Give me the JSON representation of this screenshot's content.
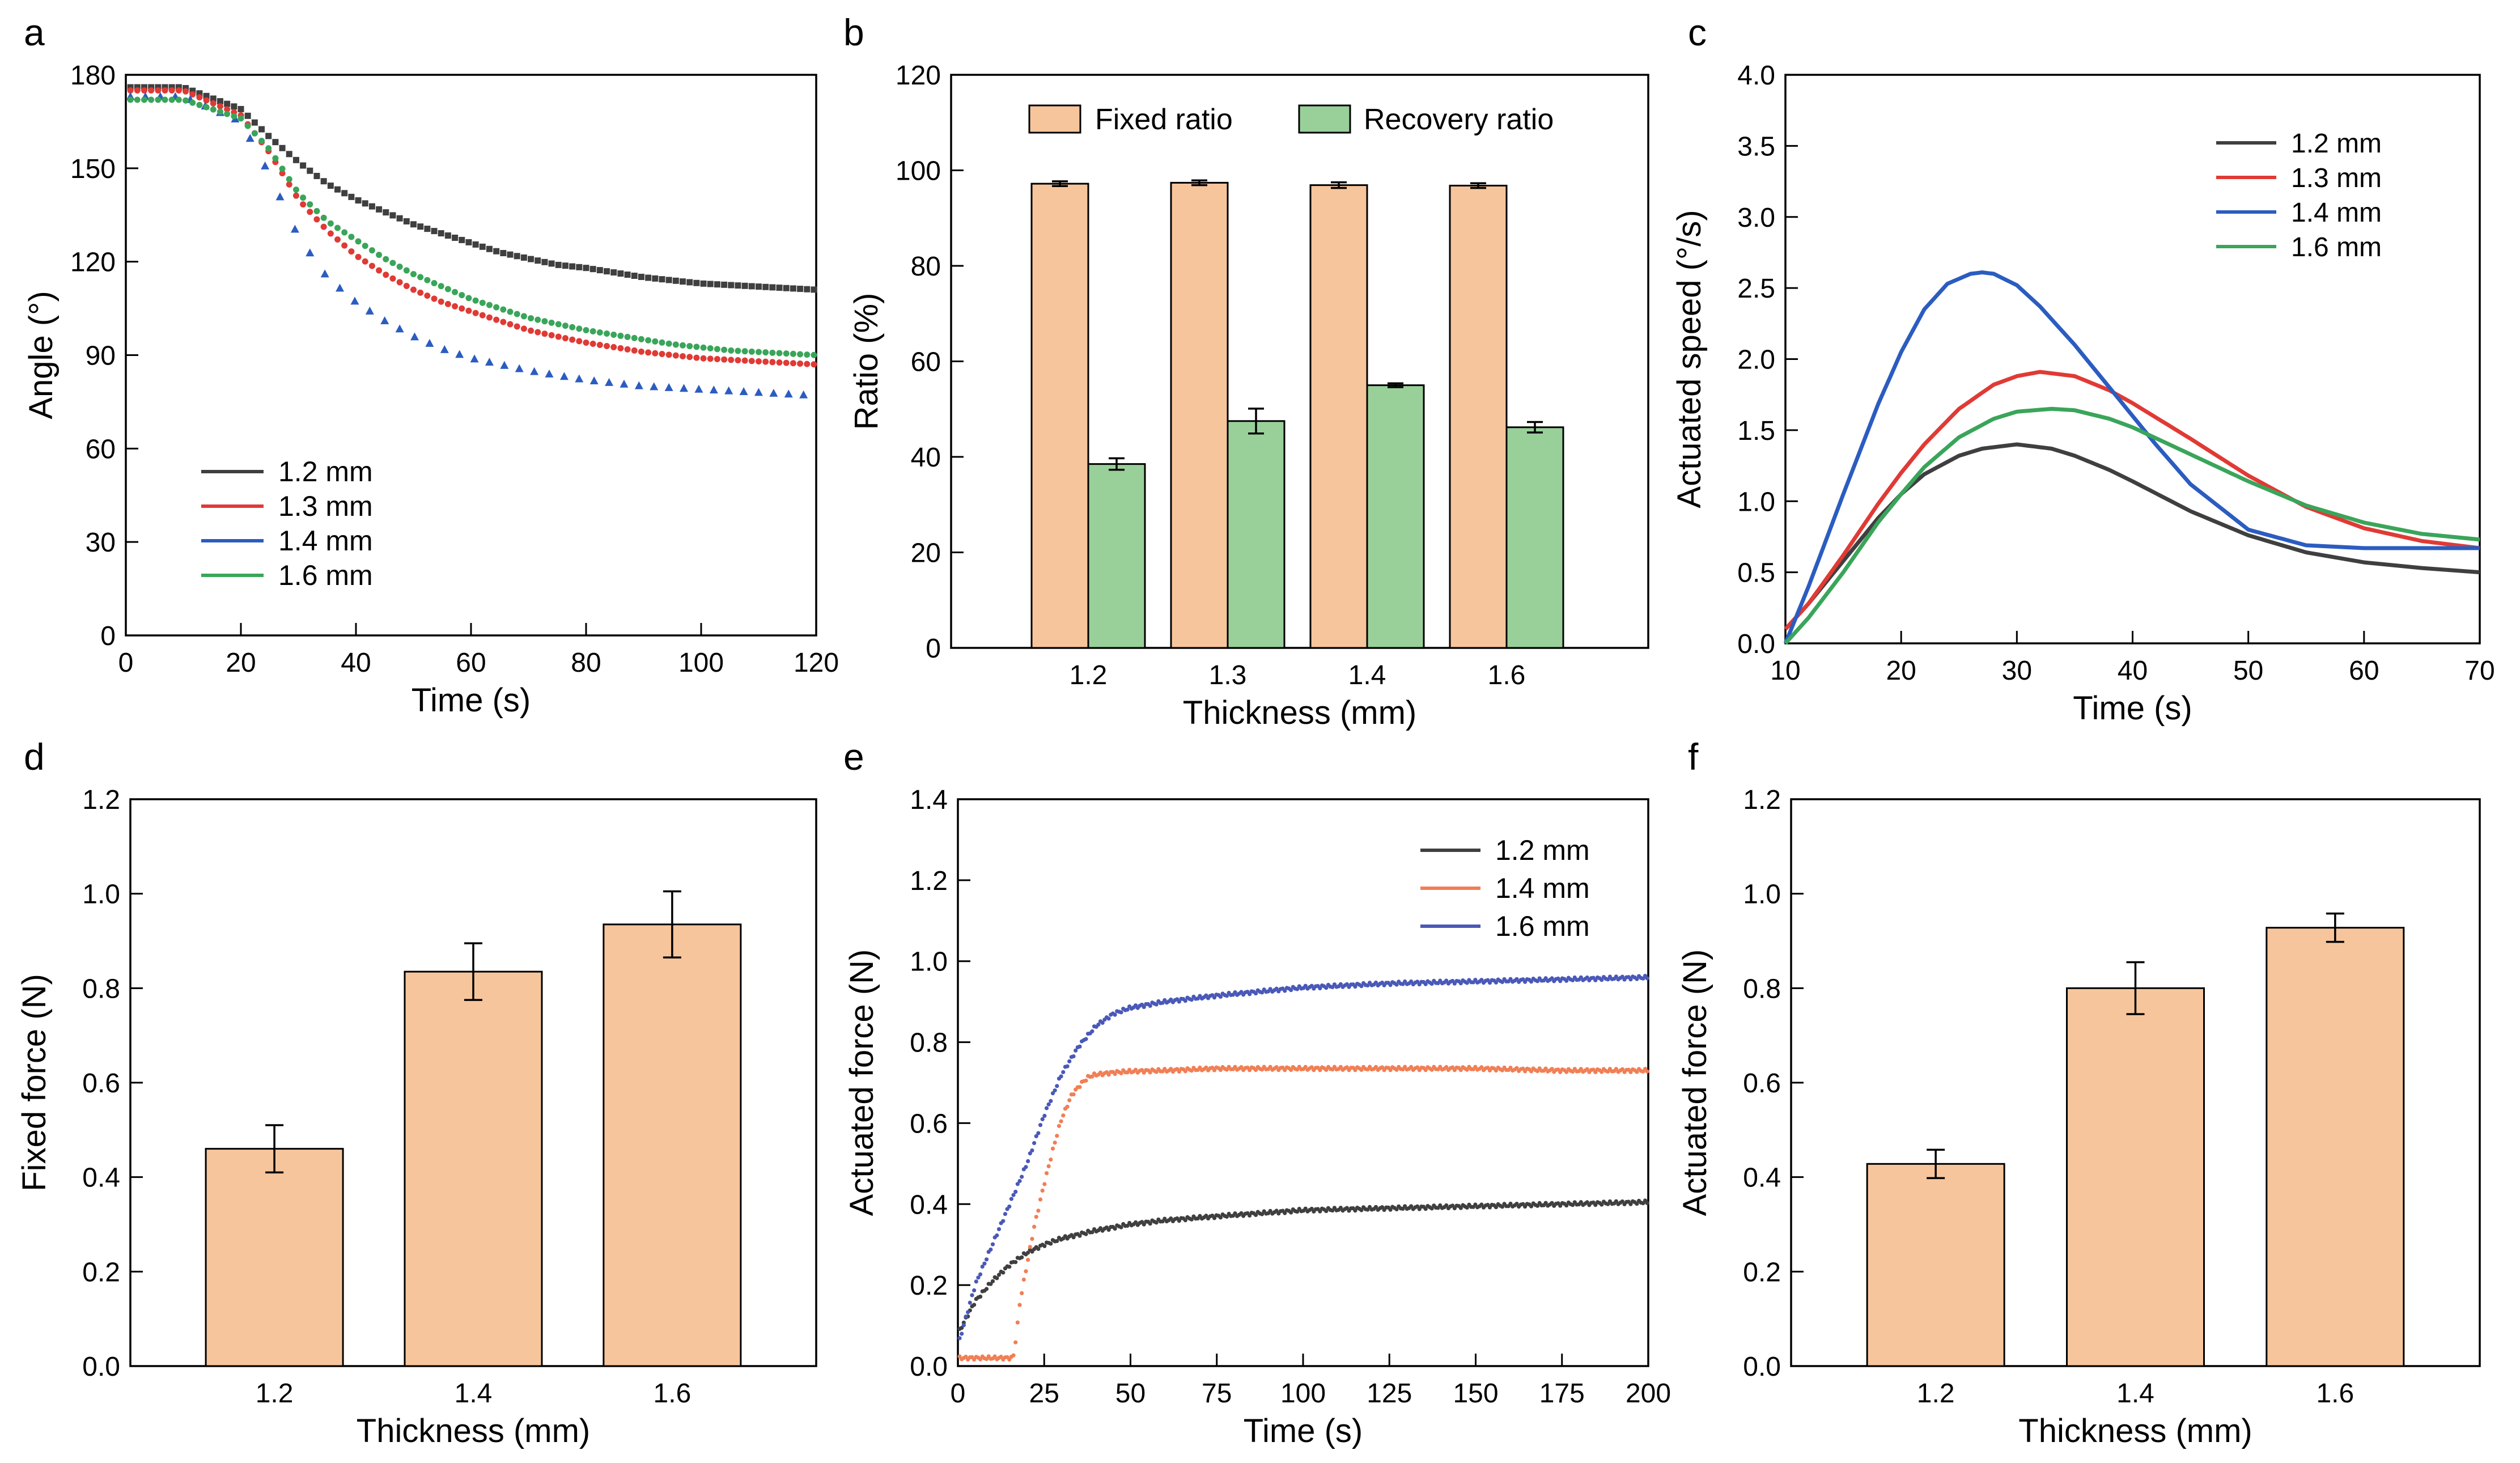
{
  "colors": {
    "bar_orange": "#F7C59C",
    "bar_green": "#99D09A",
    "c12": "#3f3f3f",
    "c13": "#e03a35",
    "c14_blue": "#2b5cc0",
    "c16_green": "#3aa55a",
    "e14_orange": "#f07f55",
    "e16_blue": "#4a58b8"
  },
  "chart_data": [
    {
      "panel": "a",
      "type": "scatter",
      "xlabel": "Time (s)",
      "ylabel": "Angle (°)",
      "xlim": [
        0,
        120
      ],
      "ylim": [
        0,
        180
      ],
      "xticks": [
        0,
        20,
        40,
        60,
        80,
        100,
        120
      ],
      "yticks": [
        0,
        30,
        60,
        90,
        120,
        150,
        180
      ],
      "legend_position": "bottom-left",
      "series": [
        {
          "name": "1.2 mm",
          "color": "#3f3f3f",
          "marker": "square",
          "step": 1.2,
          "x": [
            0,
            10,
            20,
            25,
            30,
            35,
            40,
            45,
            50,
            55,
            60,
            65,
            70,
            75,
            80,
            85,
            90,
            95,
            100,
            105,
            110,
            115,
            120
          ],
          "y": [
            176,
            176,
            169,
            160,
            152,
            145,
            140,
            136,
            132,
            129,
            126,
            123,
            121,
            119,
            118,
            116.5,
            115,
            114,
            113,
            112.5,
            112,
            111.5,
            111
          ]
        },
        {
          "name": "1.3 mm",
          "color": "#e03a35",
          "marker": "circle",
          "step": 1.2,
          "x": [
            0,
            10,
            20,
            25,
            30,
            35,
            40,
            45,
            50,
            55,
            60,
            65,
            70,
            75,
            80,
            85,
            90,
            95,
            100,
            105,
            110,
            115,
            120
          ],
          "y": [
            175,
            175,
            167,
            155,
            140,
            130,
            122,
            116,
            111,
            107,
            104,
            101,
            98,
            96,
            94,
            92.5,
            91,
            90,
            89,
            88.5,
            88,
            87.5,
            87
          ]
        },
        {
          "name": "1.4 mm",
          "color": "#2b5cc0",
          "marker": "triangle",
          "step": 2.6,
          "x": [
            0,
            10,
            20,
            25,
            30,
            35,
            40,
            45,
            50,
            55,
            60,
            65,
            70,
            75,
            80,
            85,
            90,
            95,
            100,
            110,
            120
          ],
          "y": [
            173,
            173,
            165,
            148,
            128,
            115,
            107,
            101,
            96,
            92,
            89,
            87,
            85,
            83.5,
            82,
            81,
            80,
            79.5,
            79,
            78,
            77
          ]
        },
        {
          "name": "1.6 mm",
          "color": "#3aa55a",
          "marker": "circle",
          "step": 1.2,
          "x": [
            0,
            10,
            20,
            25,
            30,
            35,
            40,
            45,
            50,
            55,
            60,
            65,
            70,
            75,
            80,
            85,
            90,
            95,
            100,
            105,
            110,
            115,
            120
          ],
          "y": [
            172,
            172,
            166,
            156,
            142,
            133,
            127,
            121,
            116,
            112,
            108,
            105,
            102,
            100,
            98,
            96.5,
            95,
            93.5,
            92.5,
            91.5,
            91,
            90.5,
            90
          ]
        }
      ]
    },
    {
      "panel": "b",
      "type": "bar",
      "xlabel": "Thickness (mm)",
      "ylabel": "Ratio (%)",
      "ylim": [
        0,
        120
      ],
      "yticks": [
        0,
        20,
        40,
        60,
        80,
        100,
        120
      ],
      "categories": [
        "1.2",
        "1.3",
        "1.4",
        "1.6"
      ],
      "legend_position": "top",
      "series": [
        {
          "name": "Fixed ratio",
          "color": "#F7C59C",
          "values": [
            97.2,
            97.4,
            96.9,
            96.8
          ],
          "errors": [
            0.5,
            0.5,
            0.6,
            0.5
          ]
        },
        {
          "name": "Recovery ratio",
          "color": "#99D09A",
          "values": [
            38.5,
            47.5,
            55.0,
            46.2
          ],
          "errors": [
            1.2,
            2.6,
            0.4,
            1.1
          ]
        }
      ]
    },
    {
      "panel": "c",
      "type": "line",
      "xlabel": "Time (s)",
      "ylabel": "Actuated speed (°/s)",
      "xlim": [
        10,
        70
      ],
      "ylim": [
        0,
        4.0
      ],
      "xticks": [
        10,
        20,
        30,
        40,
        50,
        60,
        70
      ],
      "yticks": [
        0.0,
        0.5,
        1.0,
        1.5,
        2.0,
        2.5,
        3.0,
        3.5,
        4.0
      ],
      "legend_position": "top-right",
      "series": [
        {
          "name": "1.2 mm",
          "color": "#3f3f3f",
          "x": [
            10,
            12,
            15,
            18,
            20,
            22,
            25,
            27,
            30,
            33,
            35,
            38,
            40,
            45,
            50,
            55,
            60,
            65,
            70
          ],
          "y": [
            0.1,
            0.28,
            0.58,
            0.88,
            1.05,
            1.19,
            1.32,
            1.37,
            1.4,
            1.37,
            1.32,
            1.22,
            1.14,
            0.93,
            0.76,
            0.64,
            0.57,
            0.53,
            0.5
          ]
        },
        {
          "name": "1.3 mm",
          "color": "#e03a35",
          "x": [
            10,
            12,
            15,
            18,
            20,
            22,
            25,
            28,
            30,
            32,
            35,
            38,
            40,
            45,
            50,
            55,
            60,
            65,
            70
          ],
          "y": [
            0.1,
            0.28,
            0.62,
            0.98,
            1.2,
            1.4,
            1.65,
            1.82,
            1.88,
            1.91,
            1.88,
            1.78,
            1.69,
            1.44,
            1.18,
            0.96,
            0.81,
            0.72,
            0.67
          ]
        },
        {
          "name": "1.4 mm",
          "color": "#2b5cc0",
          "x": [
            10,
            12,
            15,
            18,
            20,
            22,
            24,
            26,
            27,
            28,
            30,
            32,
            35,
            38,
            40,
            42,
            45,
            50,
            55,
            60,
            65,
            70
          ],
          "y": [
            0.0,
            0.4,
            1.05,
            1.68,
            2.05,
            2.35,
            2.53,
            2.6,
            2.61,
            2.6,
            2.52,
            2.37,
            2.1,
            1.8,
            1.6,
            1.4,
            1.12,
            0.8,
            0.69,
            0.67,
            0.67,
            0.67
          ]
        },
        {
          "name": "1.6 mm",
          "color": "#3aa55a",
          "x": [
            10,
            12,
            15,
            18,
            20,
            22,
            25,
            28,
            30,
            33,
            35,
            38,
            40,
            45,
            50,
            55,
            60,
            65,
            70
          ],
          "y": [
            0.0,
            0.18,
            0.5,
            0.85,
            1.05,
            1.24,
            1.45,
            1.58,
            1.63,
            1.65,
            1.64,
            1.58,
            1.52,
            1.33,
            1.14,
            0.97,
            0.85,
            0.77,
            0.73
          ]
        }
      ]
    },
    {
      "panel": "d",
      "type": "bar",
      "xlabel": "Thickness (mm)",
      "ylabel": "Fixed force (N)",
      "ylim": [
        0,
        1.2
      ],
      "yticks": [
        0.0,
        0.2,
        0.4,
        0.6,
        0.8,
        1.0,
        1.2
      ],
      "categories": [
        "1.2",
        "1.4",
        "1.6"
      ],
      "series": [
        {
          "name": "Fixed force",
          "color": "#F7C59C",
          "values": [
            0.46,
            0.835,
            0.935
          ],
          "errors": [
            0.05,
            0.06,
            0.07
          ]
        }
      ]
    },
    {
      "panel": "e",
      "type": "scatter",
      "xlabel": "Time (s)",
      "ylabel": "Actuated force (N)",
      "xlim": [
        0,
        200
      ],
      "ylim": [
        0,
        1.4
      ],
      "xticks": [
        0,
        25,
        50,
        75,
        100,
        125,
        150,
        175,
        200
      ],
      "yticks": [
        0.0,
        0.2,
        0.4,
        0.6,
        0.8,
        1.0,
        1.2,
        1.4
      ],
      "legend_position": "top-right",
      "series": [
        {
          "name": "1.2 mm",
          "color": "#3f3f3f",
          "step": 0.6,
          "x": [
            0,
            5,
            10,
            15,
            20,
            25,
            30,
            35,
            40,
            50,
            60,
            75,
            100,
            125,
            150,
            175,
            200
          ],
          "y": [
            0.08,
            0.16,
            0.21,
            0.25,
            0.28,
            0.3,
            0.315,
            0.325,
            0.335,
            0.35,
            0.36,
            0.37,
            0.385,
            0.39,
            0.395,
            0.4,
            0.405
          ]
        },
        {
          "name": "1.4 mm",
          "color": "#f07f55",
          "step": 0.6,
          "bands": [
            [
              0,
              1
            ],
            [
              2,
              99
            ]
          ],
          "x": [
            0,
            16,
            17,
            18,
            20,
            22,
            25,
            28,
            30,
            33,
            36,
            38,
            40,
            45,
            50,
            60,
            75,
            100,
            125,
            150,
            175,
            200
          ],
          "y": [
            0.02,
            0.02,
            0.08,
            0.16,
            0.25,
            0.34,
            0.45,
            0.55,
            0.61,
            0.67,
            0.7,
            0.715,
            0.72,
            0.725,
            0.728,
            0.73,
            0.735,
            0.735,
            0.735,
            0.735,
            0.73,
            0.73
          ]
        },
        {
          "name": "1.6 mm",
          "color": "#4a58b8",
          "step": 0.6,
          "x": [
            0,
            5,
            10,
            15,
            20,
            25,
            30,
            35,
            40,
            45,
            50,
            60,
            75,
            100,
            125,
            150,
            175,
            200
          ],
          "y": [
            0.05,
            0.2,
            0.3,
            0.4,
            0.5,
            0.62,
            0.72,
            0.79,
            0.84,
            0.87,
            0.885,
            0.9,
            0.915,
            0.935,
            0.945,
            0.95,
            0.955,
            0.96
          ]
        }
      ]
    },
    {
      "panel": "f",
      "type": "bar",
      "xlabel": "Thickness (mm)",
      "ylabel": "Actuated force (N)",
      "ylim": [
        0,
        1.2
      ],
      "yticks": [
        0.0,
        0.2,
        0.4,
        0.6,
        0.8,
        1.0,
        1.2
      ],
      "categories": [
        "1.2",
        "1.4",
        "1.6"
      ],
      "series": [
        {
          "name": "Actuated force",
          "color": "#F7C59C",
          "values": [
            0.428,
            0.8,
            0.928
          ],
          "errors": [
            0.03,
            0.055,
            0.03
          ]
        }
      ]
    }
  ]
}
